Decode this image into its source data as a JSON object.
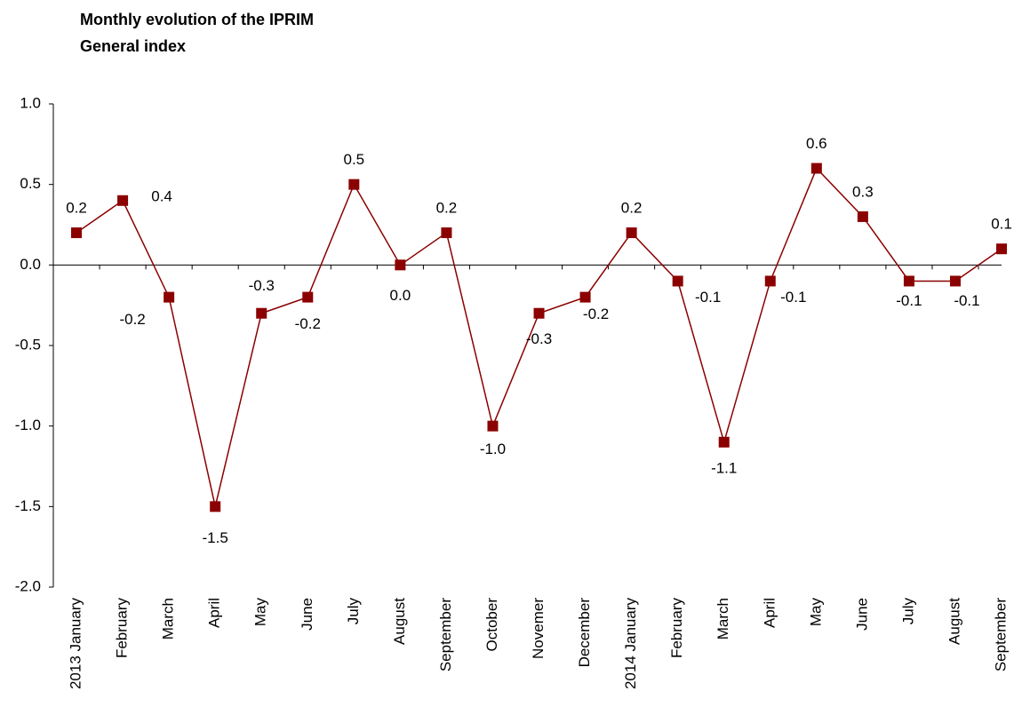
{
  "chart_data": {
    "type": "line",
    "title": "Monthly evolution of the IPRIM",
    "subtitle": "General index",
    "categories": [
      "2013 January",
      "February",
      "March",
      "April",
      "May",
      "June",
      "July",
      "August",
      "September",
      "October",
      "Novemer",
      "December",
      "2014 January",
      "February",
      "March",
      "April",
      "May",
      "June",
      "July",
      "August",
      "September"
    ],
    "series": [
      {
        "name": "IPRIM General index",
        "color": "#8b0000",
        "values": [
          0.2,
          0.4,
          -0.2,
          -1.5,
          -0.3,
          -0.2,
          0.5,
          0.0,
          0.2,
          -1.0,
          -0.3,
          -0.2,
          0.2,
          -0.1,
          -1.1,
          -0.1,
          0.6,
          0.3,
          -0.1,
          -0.1,
          0.1
        ],
        "value_labels": [
          "0.2",
          "0.4",
          "-0.2",
          "-1.5",
          "-0.3",
          "-0.2",
          "0.5",
          "0.0",
          "0.2",
          "-1.0",
          "-0.3",
          "-0.2",
          "0.2",
          "-0.1",
          "-1.1",
          "-0.1",
          "0.6",
          "0.3",
          "-0.1",
          "-0.1",
          "0.1"
        ]
      }
    ],
    "ylim": [
      -2.0,
      1.0
    ],
    "yticks": [
      {
        "value": -2.0,
        "label": "-2.0"
      },
      -1.5,
      {
        "value": -1.0,
        "label": "-1.0"
      },
      -0.5,
      {
        "value": 0.0,
        "label": "0.0"
      },
      0.5,
      {
        "value": 1.0,
        "label": "1.0"
      }
    ],
    "grid": false
  }
}
